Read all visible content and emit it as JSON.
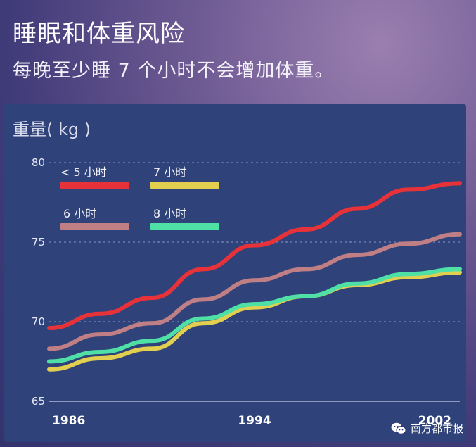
{
  "header": {
    "title": "睡眠和体重风险",
    "subtitle": "每晚至少睡 7 个小时不会增加体重。"
  },
  "watermark": {
    "text": "南方都市报",
    "icon": "wechat-icon"
  },
  "chart_data": {
    "type": "line",
    "ylabel": "重量( kg )",
    "ylim": [
      65,
      80
    ],
    "yticks": [
      65,
      70,
      75,
      80
    ],
    "xlim": [
      1986,
      2002
    ],
    "xticks": [
      1986,
      1994,
      2002
    ],
    "grid": true,
    "legend_position": "top-left",
    "x": [
      1986,
      1988,
      1990,
      1992,
      1994,
      1996,
      1998,
      2000,
      2002
    ],
    "series": [
      {
        "name": "< 5 小时",
        "color": "#e8323a",
        "values": [
          69.6,
          70.5,
          71.5,
          73.3,
          74.8,
          75.8,
          77.1,
          78.3,
          78.7
        ]
      },
      {
        "name": "7 小时",
        "color": "#e2cf4f",
        "values": [
          67.0,
          67.7,
          68.3,
          69.9,
          70.9,
          71.6,
          72.3,
          72.8,
          73.1
        ]
      },
      {
        "name": "6 小时",
        "color": "#c07f84",
        "values": [
          68.3,
          69.2,
          69.9,
          71.4,
          72.6,
          73.3,
          74.2,
          74.9,
          75.5
        ]
      },
      {
        "name": "8 小时",
        "color": "#4fe0a6",
        "values": [
          67.5,
          68.1,
          68.8,
          70.2,
          71.1,
          71.6,
          72.4,
          73.0,
          73.3
        ]
      }
    ]
  }
}
